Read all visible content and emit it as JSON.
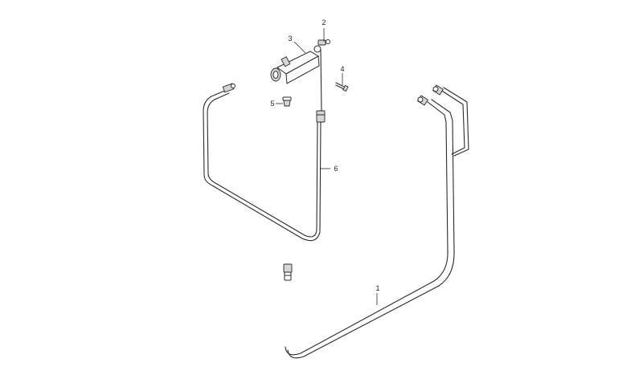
{
  "callouts": [
    {
      "id": "1",
      "label": "1"
    },
    {
      "id": "2",
      "label": "2"
    },
    {
      "id": "3",
      "label": "3"
    },
    {
      "id": "4",
      "label": "4"
    },
    {
      "id": "5",
      "label": "5"
    },
    {
      "id": "6",
      "label": "6"
    }
  ],
  "colors": {
    "line": "#2a2a2a",
    "background": "#ffffff"
  }
}
